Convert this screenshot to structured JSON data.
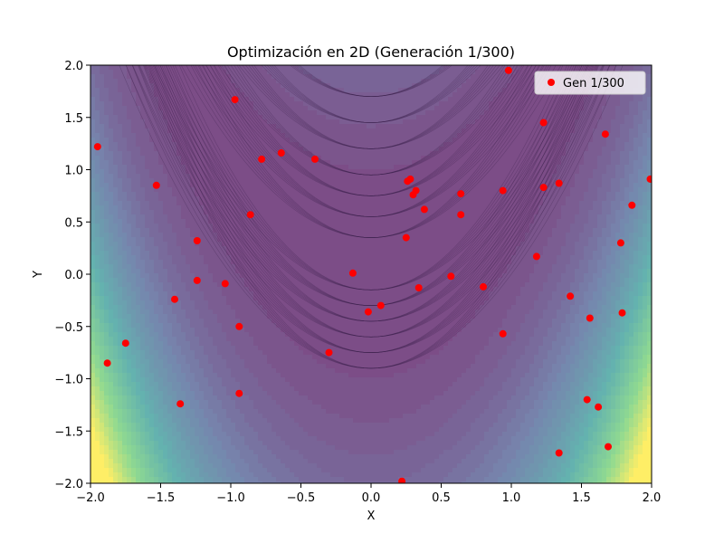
{
  "chart_data": {
    "type": "scatter",
    "title": "Optimización en 2D (Generación 1/300)",
    "xlabel": "X",
    "ylabel": "Y",
    "xlim": [
      -2.0,
      2.0
    ],
    "ylim": [
      -2.0,
      2.0
    ],
    "xticks": [
      "−2.0",
      "−1.5",
      "−1.0",
      "−0.5",
      "0.0",
      "0.5",
      "1.0",
      "1.5",
      "2.0"
    ],
    "xtick_values": [
      -2.0,
      -1.5,
      -1.0,
      -0.5,
      0.0,
      0.5,
      1.0,
      1.5,
      2.0
    ],
    "yticks": [
      "−2.0",
      "−1.5",
      "−1.0",
      "−0.5",
      "0.0",
      "0.5",
      "1.0",
      "1.5",
      "2.0"
    ],
    "ytick_values": [
      -2.0,
      -1.5,
      -1.0,
      -0.5,
      0.0,
      0.5,
      1.0,
      1.5,
      2.0
    ],
    "background": "filled contour plot of a parabolic-valley objective function (viridis colormap)",
    "legend": {
      "label": "Gen 1/300",
      "placement": "top-right"
    },
    "series": [
      {
        "name": "Gen 1/300",
        "color": "#ff0000",
        "points": [
          [
            -1.95,
            1.22
          ],
          [
            -1.53,
            0.85
          ],
          [
            -0.97,
            1.67
          ],
          [
            -0.78,
            1.1
          ],
          [
            -0.64,
            1.16
          ],
          [
            -0.4,
            1.1
          ],
          [
            -0.86,
            0.57
          ],
          [
            -1.24,
            0.32
          ],
          [
            -1.24,
            -0.06
          ],
          [
            -1.4,
            -0.24
          ],
          [
            -1.04,
            -0.09
          ],
          [
            -0.94,
            -0.5
          ],
          [
            -1.75,
            -0.66
          ],
          [
            -1.88,
            -0.85
          ],
          [
            -1.36,
            -1.24
          ],
          [
            -0.94,
            -1.14
          ],
          [
            -0.3,
            -0.75
          ],
          [
            -0.13,
            0.01
          ],
          [
            -0.02,
            -0.36
          ],
          [
            0.07,
            -0.3
          ],
          [
            0.22,
            -1.98
          ],
          [
            0.25,
            0.35
          ],
          [
            0.26,
            0.89
          ],
          [
            0.28,
            0.91
          ],
          [
            0.3,
            0.76
          ],
          [
            0.32,
            0.8
          ],
          [
            0.34,
            -0.13
          ],
          [
            0.38,
            0.62
          ],
          [
            0.57,
            -0.02
          ],
          [
            0.64,
            0.77
          ],
          [
            0.64,
            0.57
          ],
          [
            0.8,
            -0.12
          ],
          [
            0.94,
            0.8
          ],
          [
            0.94,
            -0.57
          ],
          [
            0.98,
            1.95
          ],
          [
            1.18,
            0.17
          ],
          [
            1.23,
            1.45
          ],
          [
            1.23,
            0.83
          ],
          [
            1.34,
            0.87
          ],
          [
            1.34,
            -1.71
          ],
          [
            1.42,
            -0.21
          ],
          [
            1.54,
            -1.2
          ],
          [
            1.56,
            -0.42
          ],
          [
            1.62,
            -1.27
          ],
          [
            1.67,
            1.34
          ],
          [
            1.69,
            -1.65
          ],
          [
            1.78,
            0.3
          ],
          [
            1.79,
            -0.37
          ],
          [
            1.86,
            0.66
          ],
          [
            1.99,
            0.91
          ]
        ]
      }
    ]
  }
}
